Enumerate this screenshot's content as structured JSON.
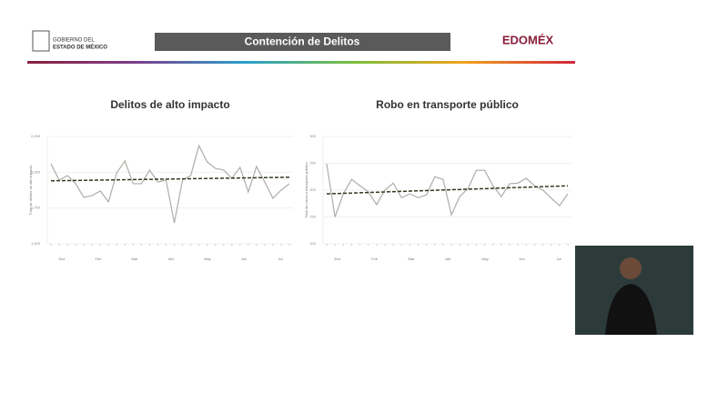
{
  "header": {
    "title": "Contención de Delitos",
    "left_logo": [
      "GOBIERNO DEL",
      "ESTADO DE MÉXICO"
    ],
    "right_logo": "EDOMÉX"
  },
  "chart_data": [
    {
      "type": "line",
      "title": "Delitos de alto impacto",
      "y_label": "Total de delitos de alto impacto",
      "months": [
        "Ene",
        "Feb",
        "Mar",
        "Abr",
        "May",
        "Jun",
        "Jul"
      ],
      "values": [
        2059,
        1945,
        1977,
        1920,
        1824,
        1837,
        1869,
        1793,
        1996,
        2078,
        1920,
        1920,
        2015,
        1932,
        1945,
        1646,
        1945,
        1977,
        2186,
        2072,
        2027,
        2015,
        1958,
        2034,
        1862,
        2040,
        1932,
        1818,
        1875,
        1920
      ],
      "trend": [
        1940,
        1965
      ],
      "color": "#b0aca8",
      "trend_color": "#2e3b1f",
      "ylim": [
        1500,
        2250
      ],
      "yticks": [
        {
          "value": 1500,
          "label": "1,500"
        },
        {
          "value": 1750,
          "label": "1,750"
        },
        {
          "value": 2000,
          "label": "2,000"
        },
        {
          "value": 2250,
          "label": "2,250"
        }
      ]
    },
    {
      "type": "line",
      "title": "Robo en transporte público",
      "y_label": "Total de robos a transporte público",
      "months": [
        "Ene",
        "Feb",
        "Mar",
        "Abr",
        "May",
        "Jun",
        "Jul"
      ],
      "values": [
        249,
        150,
        193,
        220,
        208,
        197,
        173,
        200,
        213,
        186,
        193,
        186,
        191,
        225,
        220,
        154,
        188,
        203,
        237,
        237,
        208,
        188,
        212,
        213,
        222,
        208,
        200,
        185,
        171,
        193
      ],
      "trend": [
        193,
        208
      ],
      "color": "#b0aca8",
      "trend_color": "#2e3b1f",
      "ylim": [
        100,
        300
      ],
      "yticks": [
        100,
        150,
        200,
        250,
        300
      ]
    }
  ]
}
